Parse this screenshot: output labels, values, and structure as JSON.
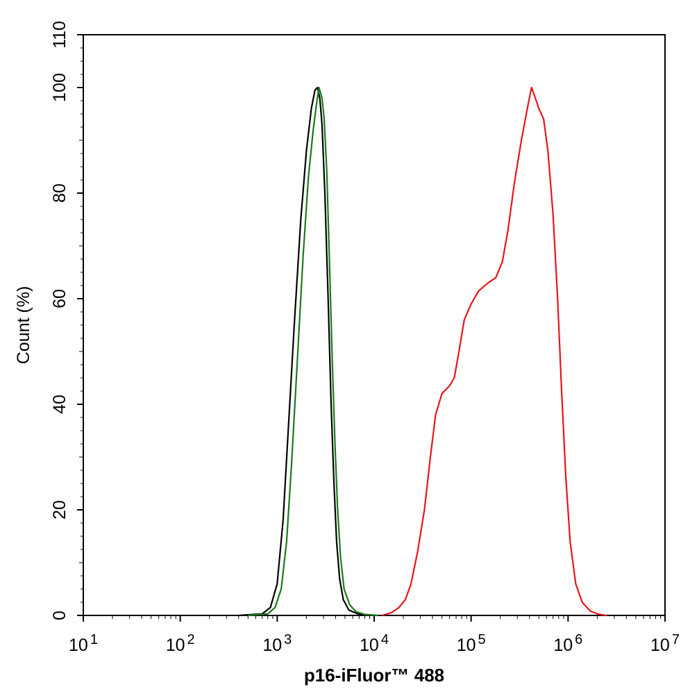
{
  "chart_data": {
    "type": "line",
    "title": "",
    "xlabel": "p16-iFluor™ 488",
    "ylabel": "Count  (%)",
    "x_scale": "log",
    "xlim": [
      10,
      10000000
    ],
    "ylim": [
      0,
      110
    ],
    "grid": false,
    "legend": "none",
    "x_ticks": [
      {
        "base": "10",
        "exp": "1",
        "value": 10
      },
      {
        "base": "10",
        "exp": "2",
        "value": 100
      },
      {
        "base": "10",
        "exp": "3",
        "value": 1000
      },
      {
        "base": "10",
        "exp": "4",
        "value": 10000
      },
      {
        "base": "10",
        "exp": "5",
        "value": 100000
      },
      {
        "base": "10",
        "exp": "6",
        "value": 1000000
      },
      {
        "base": "10",
        "exp": "7",
        "value": 10000000
      }
    ],
    "y_ticks": [
      "0",
      "20",
      "40",
      "60",
      "80",
      "100",
      "110"
    ],
    "series": [
      {
        "color": "#000000",
        "points": [
          [
            400,
            0
          ],
          [
            700,
            0.3
          ],
          [
            850,
            1.5
          ],
          [
            1000,
            6
          ],
          [
            1150,
            18
          ],
          [
            1300,
            35
          ],
          [
            1500,
            55
          ],
          [
            1750,
            75
          ],
          [
            2000,
            88
          ],
          [
            2250,
            96
          ],
          [
            2450,
            99.5
          ],
          [
            2600,
            100
          ],
          [
            2750,
            98
          ],
          [
            2900,
            93
          ],
          [
            3100,
            80
          ],
          [
            3350,
            60
          ],
          [
            3600,
            40
          ],
          [
            3850,
            25
          ],
          [
            4100,
            14
          ],
          [
            4400,
            7
          ],
          [
            4800,
            3
          ],
          [
            5500,
            1
          ],
          [
            7000,
            0.2
          ],
          [
            10000,
            0
          ]
        ]
      },
      {
        "color": "#1a7a1a",
        "points": [
          [
            500,
            0
          ],
          [
            800,
            0.3
          ],
          [
            950,
            1.5
          ],
          [
            1100,
            5
          ],
          [
            1250,
            14
          ],
          [
            1400,
            28
          ],
          [
            1600,
            47
          ],
          [
            1850,
            68
          ],
          [
            2100,
            83
          ],
          [
            2350,
            92
          ],
          [
            2550,
            97
          ],
          [
            2700,
            100
          ],
          [
            2900,
            98
          ],
          [
            3050,
            94
          ],
          [
            3250,
            84
          ],
          [
            3450,
            68
          ],
          [
            3700,
            48
          ],
          [
            3950,
            32
          ],
          [
            4200,
            20
          ],
          [
            4500,
            11
          ],
          [
            4900,
            5
          ],
          [
            5600,
            2
          ],
          [
            6500,
            0.7
          ],
          [
            8000,
            0.2
          ],
          [
            11000,
            0
          ]
        ]
      },
      {
        "color": "#e8141b",
        "points": [
          [
            12000,
            0
          ],
          [
            15000,
            0.5
          ],
          [
            18000,
            1.5
          ],
          [
            21000,
            3
          ],
          [
            24000,
            6
          ],
          [
            28000,
            12
          ],
          [
            33000,
            20
          ],
          [
            38000,
            30
          ],
          [
            43000,
            38
          ],
          [
            50000,
            42
          ],
          [
            60000,
            43.5
          ],
          [
            67000,
            45
          ],
          [
            75000,
            50
          ],
          [
            85000,
            56
          ],
          [
            100000,
            59
          ],
          [
            120000,
            61.5
          ],
          [
            150000,
            63
          ],
          [
            180000,
            64
          ],
          [
            210000,
            67
          ],
          [
            240000,
            73
          ],
          [
            280000,
            82
          ],
          [
            330000,
            90
          ],
          [
            380000,
            96
          ],
          [
            420000,
            100
          ],
          [
            460000,
            98
          ],
          [
            500000,
            96
          ],
          [
            560000,
            94
          ],
          [
            620000,
            88
          ],
          [
            700000,
            76
          ],
          [
            780000,
            60
          ],
          [
            860000,
            42
          ],
          [
            950000,
            26
          ],
          [
            1050000,
            14
          ],
          [
            1200000,
            6
          ],
          [
            1400000,
            2.5
          ],
          [
            1700000,
            0.8
          ],
          [
            2100000,
            0.2
          ],
          [
            2500000,
            0
          ]
        ]
      }
    ]
  }
}
